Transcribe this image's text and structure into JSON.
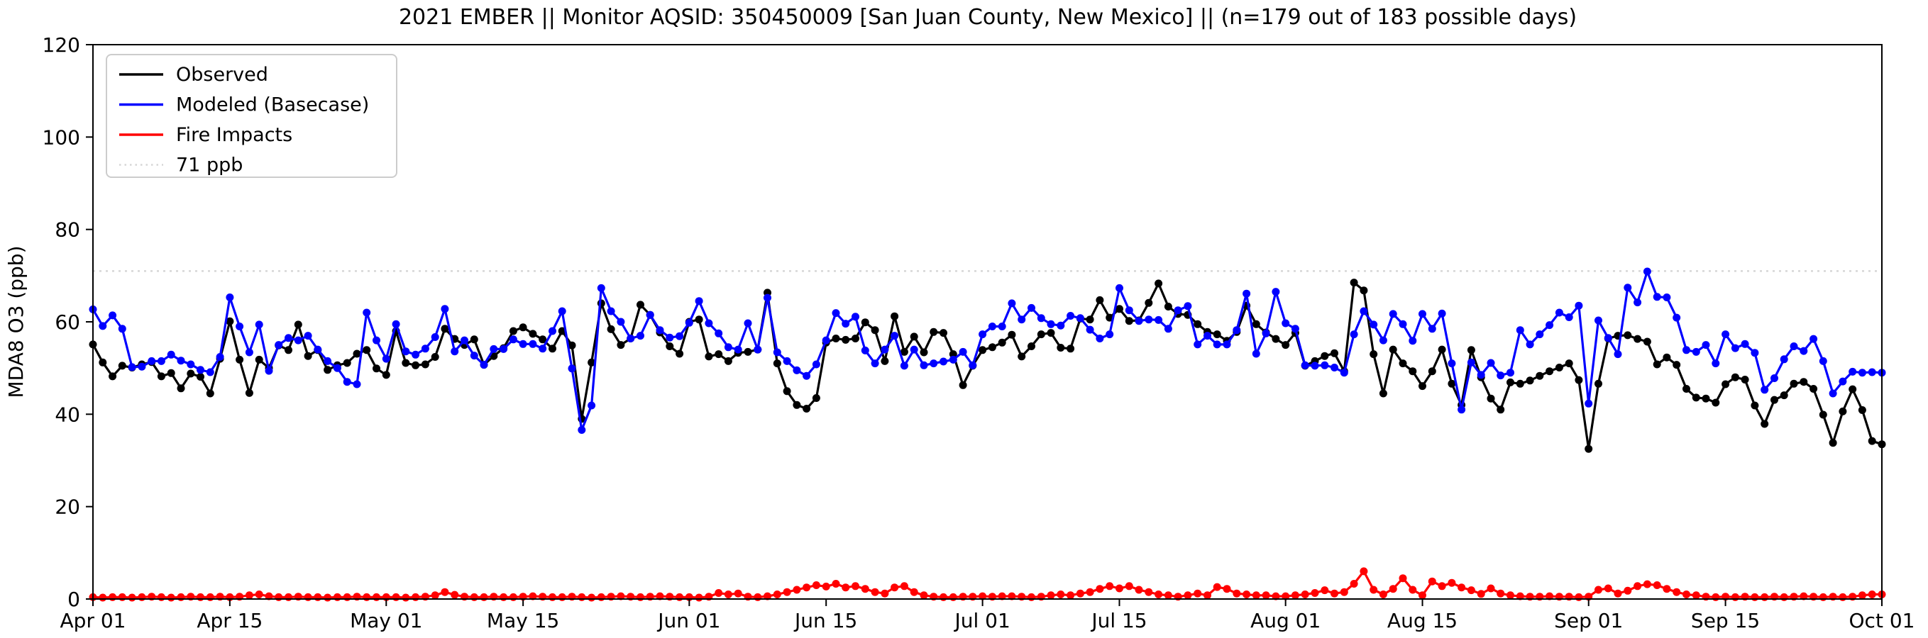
{
  "title": "2021 EMBER || Monitor AQSID: 350450009 [San Juan County, New Mexico] || (n=179 out of 183 possible days)",
  "legend": [
    {
      "label": "Observed",
      "color": "#000000",
      "style": "solid"
    },
    {
      "label": "Modeled (Basecase)",
      "color": "#0000ff",
      "style": "solid"
    },
    {
      "label": "Fire Impacts",
      "color": "#ff0000",
      "style": "solid"
    },
    {
      "label": "71 ppb",
      "color": "#d6d6d6",
      "style": "dotted"
    }
  ],
  "chart_data": {
    "type": "line",
    "title": "2021 EMBER || Monitor AQSID: 350450009 [San Juan County, New Mexico] || (n=179 out of 183 possible days)",
    "xlabel": "",
    "ylabel": "MDA8 O3 (ppb)",
    "ylim": [
      0,
      120
    ],
    "yticks": [
      0,
      20,
      40,
      60,
      80,
      100,
      120
    ],
    "grid": false,
    "legend_position": "upper left",
    "x_start_label": "Apr 01",
    "x_end_label": "Oct 01",
    "x_days_total": 184,
    "xticks": [
      {
        "day": 1,
        "label": "Apr 01"
      },
      {
        "day": 15,
        "label": "Apr 15"
      },
      {
        "day": 31,
        "label": "May 01"
      },
      {
        "day": 45,
        "label": "May 15"
      },
      {
        "day": 62,
        "label": "Jun 01"
      },
      {
        "day": 76,
        "label": "Jun 15"
      },
      {
        "day": 92,
        "label": "Jul 01"
      },
      {
        "day": 106,
        "label": "Jul 15"
      },
      {
        "day": 123,
        "label": "Aug 01"
      },
      {
        "day": 137,
        "label": "Aug 15"
      },
      {
        "day": 154,
        "label": "Sep 01"
      },
      {
        "day": 168,
        "label": "Sep 15"
      },
      {
        "day": 184,
        "label": "Oct 01"
      }
    ],
    "reference_line": {
      "value": 71,
      "label": "71 ppb",
      "color": "#d6d6d6",
      "style": "dotted"
    },
    "series": [
      {
        "name": "Observed",
        "color": "#000000",
        "values": [
          55.1,
          51.2,
          48.2,
          50.5,
          50.1,
          50.8,
          51.3,
          48.2,
          48.9,
          45.6,
          48.8,
          48.1,
          44.5,
          52.0,
          60.1,
          51.8,
          44.6,
          51.8,
          50.0,
          54.9,
          53.9,
          59.4,
          52.6,
          53.9,
          49.6,
          50.6,
          51.1,
          53.1,
          53.9,
          49.9,
          48.5,
          58.0,
          51.1,
          50.6,
          50.8,
          52.4,
          58.5,
          56.3,
          55.0,
          56.2,
          50.7,
          52.6,
          54.3,
          58.0,
          58.8,
          57.4,
          56.2,
          54.2,
          58.0,
          54.9,
          39.0,
          51.2,
          64.0,
          58.4,
          55.0,
          56.4,
          63.7,
          61.5,
          57.7,
          54.7,
          53.1,
          60.0,
          60.5,
          52.5,
          53.0,
          51.5,
          53.3,
          53.5,
          54.0,
          66.3,
          51.0,
          45.0,
          42.0,
          41.2,
          43.5,
          55.5,
          56.4,
          56.1,
          56.4,
          59.9,
          58.2,
          51.5,
          61.2,
          53.5,
          56.8,
          53.4,
          57.8,
          57.6,
          53.0,
          46.3,
          50.5,
          53.9,
          54.5,
          55.5,
          57.2,
          52.5,
          54.7,
          57.3,
          57.6,
          54.4,
          54.2,
          60.7,
          60.5,
          64.7,
          60.9,
          62.8,
          60.2,
          60.3,
          64.1,
          68.3,
          63.3,
          61.7,
          61.5,
          59.5,
          57.8,
          57.3,
          55.9,
          57.8,
          63.5,
          59.5,
          57.7,
          56.3,
          55.0,
          57.6,
          50.5,
          51.5,
          52.6,
          53.2,
          49.3,
          68.5,
          66.8,
          53.0,
          44.5,
          54.0,
          51.0,
          49.3,
          46.1,
          49.3,
          54.0,
          46.6,
          42.0,
          53.9,
          48.0,
          43.4,
          41.0,
          46.9,
          46.6,
          47.3,
          48.3,
          49.3,
          50.1,
          51.0,
          47.4,
          32.5,
          46.6,
          56.4,
          57.0,
          57.1,
          56.3,
          55.7,
          50.8,
          52.3,
          50.7,
          45.5,
          43.6,
          43.4,
          42.5,
          46.5,
          48.0,
          47.5,
          41.9,
          37.9,
          43.1,
          44.1,
          46.6,
          47.0,
          45.5,
          39.9,
          33.8,
          40.6,
          45.4,
          40.9,
          34.2,
          33.5
        ]
      },
      {
        "name": "Modeled (Basecase)",
        "color": "#0000ff",
        "values": [
          62.7,
          59.1,
          61.4,
          58.5,
          50.2,
          50.3,
          51.5,
          51.5,
          52.9,
          51.6,
          50.8,
          49.6,
          49.1,
          52.4,
          65.3,
          59.0,
          53.4,
          59.4,
          49.4,
          55.0,
          56.5,
          56.0,
          57.0,
          54.0,
          51.5,
          50.0,
          47.0,
          46.5,
          62.0,
          56.0,
          52.0,
          59.5,
          53.6,
          52.9,
          54.2,
          56.7,
          62.8,
          53.6,
          56.0,
          52.7,
          50.7,
          54.1,
          54.1,
          56.2,
          55.2,
          55.2,
          54.2,
          58.0,
          62.3,
          49.9,
          36.6,
          41.9,
          67.3,
          62.3,
          60.0,
          56.4,
          57.0,
          61.5,
          58.2,
          56.6,
          56.9,
          59.8,
          64.5,
          59.7,
          57.5,
          54.5,
          54.0,
          59.7,
          54.0,
          65.2,
          53.4,
          51.5,
          49.5,
          48.3,
          50.8,
          56.0,
          61.9,
          59.6,
          61.1,
          53.8,
          51.0,
          54.0,
          57.0,
          50.5,
          54.0,
          50.6,
          51.0,
          51.4,
          51.8,
          53.5,
          50.6,
          57.3,
          59.0,
          59.0,
          64.0,
          60.5,
          63.0,
          60.8,
          59.5,
          59.2,
          61.3,
          60.8,
          58.3,
          56.4,
          57.3,
          67.3,
          62.5,
          60.2,
          60.5,
          60.4,
          58.5,
          62.5,
          63.4,
          55.1,
          57.0,
          55.1,
          55.1,
          58.2,
          66.1,
          53.1,
          57.5,
          66.5,
          59.7,
          58.5,
          50.6,
          50.5,
          50.6,
          50.1,
          49.0,
          57.3,
          62.3,
          59.4,
          56.0,
          61.7,
          59.5,
          55.9,
          61.7,
          58.5,
          61.8,
          51.0,
          41.0,
          51.2,
          48.5,
          51.1,
          48.4,
          49.0,
          58.2,
          55.1,
          57.3,
          59.3,
          62.0,
          61.0,
          63.5,
          42.3,
          60.3,
          56.5,
          53.0,
          67.4,
          64.2,
          70.9,
          65.4,
          65.3,
          60.9,
          53.9,
          53.5,
          55.0,
          51.0,
          57.3,
          54.3,
          55.2,
          53.3,
          45.3,
          47.8,
          51.9,
          54.7,
          53.7,
          56.3,
          51.5,
          44.5,
          47.1,
          49.2,
          49.0,
          49.1,
          49.0
        ]
      },
      {
        "name": "Fire Impacts",
        "color": "#ff0000",
        "values": [
          0.4,
          0.3,
          0.4,
          0.4,
          0.3,
          0.4,
          0.5,
          0.4,
          0.3,
          0.4,
          0.5,
          0.4,
          0.4,
          0.5,
          0.4,
          0.5,
          0.8,
          1.0,
          0.6,
          0.4,
          0.4,
          0.5,
          0.4,
          0.4,
          0.3,
          0.4,
          0.4,
          0.5,
          0.4,
          0.4,
          0.4,
          0.4,
          0.3,
          0.4,
          0.5,
          0.8,
          1.5,
          0.9,
          0.5,
          0.4,
          0.4,
          0.5,
          0.4,
          0.4,
          0.5,
          0.6,
          0.5,
          0.4,
          0.4,
          0.5,
          0.4,
          0.3,
          0.4,
          0.5,
          0.6,
          0.5,
          0.4,
          0.5,
          0.6,
          0.5,
          0.4,
          0.4,
          0.3,
          0.5,
          1.3,
          1.0,
          1.2,
          0.5,
          0.4,
          0.6,
          1.0,
          1.5,
          2.0,
          2.5,
          3.0,
          2.7,
          3.3,
          2.5,
          2.8,
          2.2,
          1.5,
          1.2,
          2.5,
          2.8,
          1.5,
          0.8,
          0.5,
          0.4,
          0.4,
          0.5,
          0.5,
          0.6,
          0.5,
          0.6,
          0.6,
          0.5,
          0.4,
          0.5,
          0.8,
          1.0,
          0.8,
          1.2,
          1.5,
          2.2,
          2.8,
          2.3,
          2.8,
          2.0,
          1.5,
          1.0,
          0.8,
          0.5,
          0.8,
          1.2,
          0.8,
          2.6,
          2.2,
          1.2,
          1.0,
          0.8,
          0.8,
          0.6,
          0.6,
          0.8,
          1.0,
          1.3,
          1.9,
          1.2,
          1.5,
          3.3,
          6.0,
          2.0,
          1.0,
          2.2,
          4.5,
          2.0,
          0.8,
          3.8,
          2.8,
          3.5,
          2.5,
          1.9,
          1.1,
          2.3,
          1.2,
          0.8,
          0.6,
          0.5,
          0.5,
          0.6,
          0.5,
          0.5,
          0.4,
          0.5,
          2.0,
          2.3,
          1.2,
          1.8,
          2.8,
          3.2,
          3.0,
          2.2,
          1.5,
          1.0,
          0.8,
          0.5,
          0.4,
          0.5,
          0.4,
          0.5,
          0.4,
          0.4,
          0.5,
          0.4,
          0.5,
          0.6,
          0.5,
          0.4,
          0.5,
          0.4,
          0.5,
          0.8,
          1.0,
          1.0
        ]
      }
    ]
  }
}
